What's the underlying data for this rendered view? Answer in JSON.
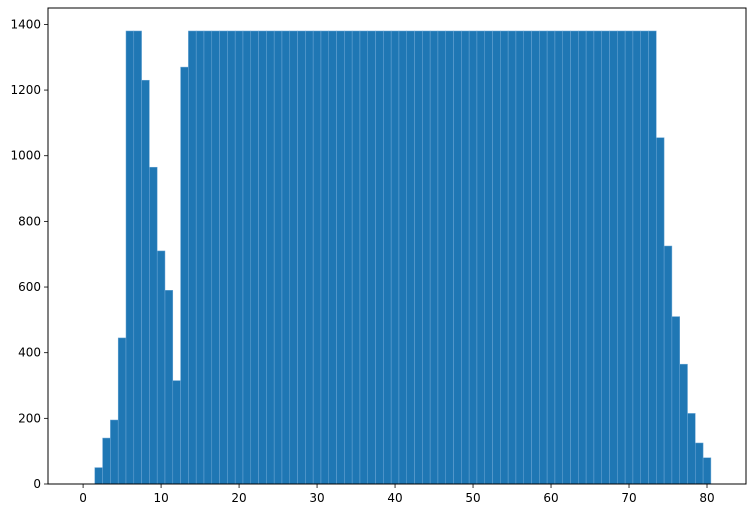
{
  "chart_data": {
    "type": "bar",
    "title": "",
    "xlabel": "",
    "ylabel": "",
    "grid": false,
    "bar_color": "#1f77b4",
    "bar_edge_color": "#6fa8d6",
    "xlim": [
      -4.5,
      85
    ],
    "ylim": [
      0,
      1450
    ],
    "x_ticks": [
      0,
      10,
      20,
      30,
      40,
      50,
      60,
      70,
      80
    ],
    "x_tick_labels": [
      "0",
      "10",
      "20",
      "30",
      "40",
      "50",
      "60",
      "70",
      "80"
    ],
    "y_ticks": [
      0,
      200,
      400,
      600,
      800,
      1000,
      1200,
      1400
    ],
    "y_tick_labels": [
      "0",
      "200",
      "400",
      "600",
      "800",
      "1000",
      "1200",
      "1400"
    ],
    "x": [
      1,
      2,
      3,
      4,
      5,
      6,
      7,
      8,
      9,
      10,
      11,
      12,
      13,
      14,
      15,
      16,
      17,
      18,
      19,
      20,
      21,
      22,
      23,
      24,
      25,
      26,
      27,
      28,
      29,
      30,
      31,
      32,
      33,
      34,
      35,
      36,
      37,
      38,
      39,
      40,
      41,
      42,
      43,
      44,
      45,
      46,
      47,
      48,
      49,
      50,
      51,
      52,
      53,
      54,
      55,
      56,
      57,
      58,
      59,
      60,
      61,
      62,
      63,
      64,
      65,
      66,
      67,
      68,
      69,
      70,
      71,
      72,
      73,
      74,
      75,
      76,
      77,
      78,
      79,
      80,
      81
    ],
    "values": [
      0,
      50,
      140,
      195,
      445,
      1380,
      1380,
      1230,
      965,
      710,
      590,
      315,
      1270,
      1380,
      1380,
      1380,
      1380,
      1380,
      1380,
      1380,
      1380,
      1380,
      1380,
      1380,
      1380,
      1380,
      1380,
      1380,
      1380,
      1380,
      1380,
      1380,
      1380,
      1380,
      1380,
      1380,
      1380,
      1380,
      1380,
      1380,
      1380,
      1380,
      1380,
      1380,
      1380,
      1380,
      1380,
      1380,
      1380,
      1380,
      1380,
      1380,
      1380,
      1380,
      1380,
      1380,
      1380,
      1380,
      1380,
      1380,
      1380,
      1380,
      1380,
      1380,
      1380,
      1380,
      1380,
      1380,
      1380,
      1380,
      1380,
      1380,
      1380,
      1055,
      725,
      510,
      365,
      215,
      125,
      80,
      0
    ]
  }
}
